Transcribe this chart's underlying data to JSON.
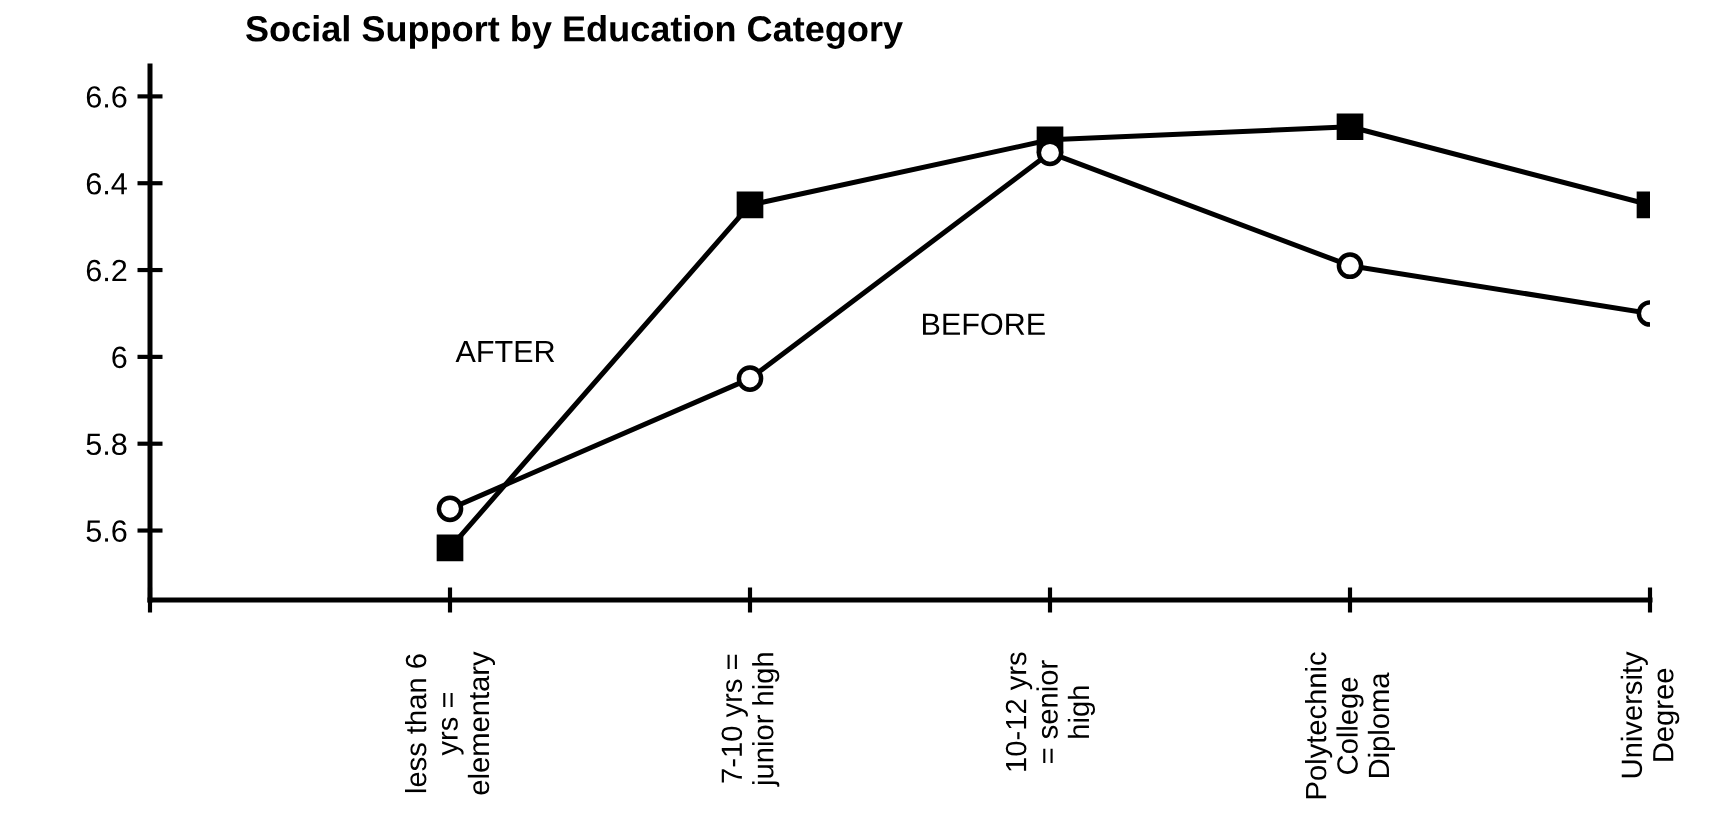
{
  "chart_data": {
    "type": "line",
    "title": "Social Support by Education Category",
    "categories": [
      null,
      "less than 6\nyrs =\nelementary",
      "7-10 yrs =\njunior high",
      "10-12 yrs\n= senior\nhigh",
      "Polytechnic\nCollege\nDiploma",
      "University\nDegree"
    ],
    "series": [
      {
        "name": "AFTER",
        "color": "#000000",
        "marker": "square",
        "values": [
          null,
          5.56,
          6.35,
          6.5,
          6.53,
          6.35
        ]
      },
      {
        "name": "BEFORE",
        "color": "#000000",
        "marker": "circle",
        "values": [
          null,
          5.65,
          5.95,
          6.47,
          6.21,
          6.1
        ]
      }
    ],
    "ylim": [
      5.44,
      6.67
    ],
    "yticks": [
      5.6,
      5.8,
      6,
      6.2,
      6.4,
      6.6
    ],
    "grid": false,
    "legend": false,
    "line_style": "solid"
  }
}
